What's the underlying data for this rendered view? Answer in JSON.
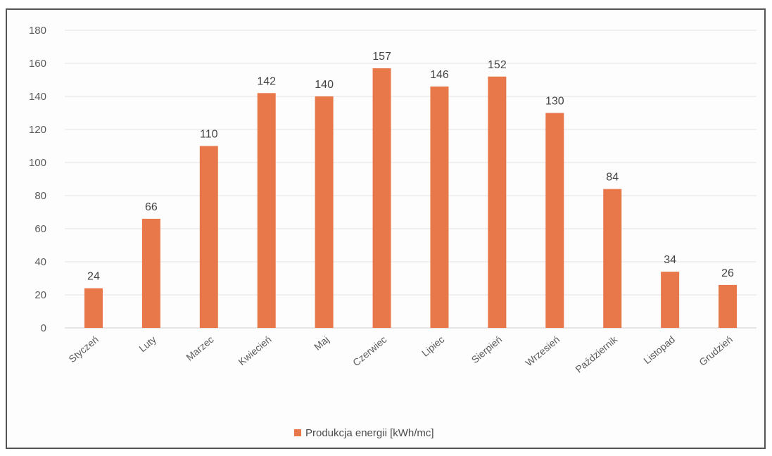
{
  "chart_data": {
    "type": "bar",
    "categories": [
      "Styczeń",
      "Luty",
      "Marzec",
      "Kwiecień",
      "Maj",
      "Czerwiec",
      "Lipiec",
      "Sierpień",
      "Wrzesień",
      "Październik",
      "Listopad",
      "Grudzień"
    ],
    "series": [
      {
        "name": "Produkcja energii [kWh/mc]",
        "values": [
          24,
          66,
          110,
          142,
          140,
          157,
          146,
          152,
          130,
          84,
          34,
          26
        ],
        "color": "#e8784a"
      }
    ],
    "yticks": [
      0,
      20,
      40,
      60,
      80,
      100,
      120,
      140,
      160,
      180
    ],
    "ylim": [
      0,
      180
    ],
    "grid": true,
    "data_labels": true,
    "legend_position": "bottom"
  }
}
